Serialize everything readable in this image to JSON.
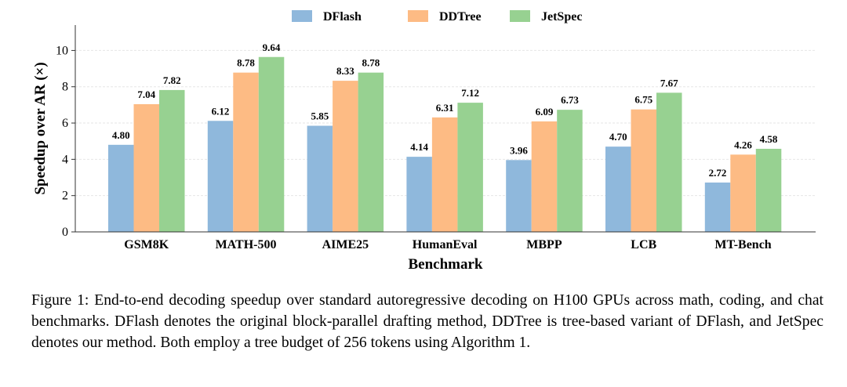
{
  "chart_data": {
    "type": "bar",
    "title": "",
    "xlabel": "Benchmark",
    "ylabel": "Speedup over AR (×)",
    "ylim": [
      0,
      11.4
    ],
    "yticks": [
      "0",
      "2",
      "4",
      "6",
      "8",
      "10"
    ],
    "grid": "horizontal",
    "legend_position": "top-center",
    "categories": [
      "GSM8K",
      "MATH-500",
      "AIME25",
      "HumanEval",
      "MBPP",
      "LCB",
      "MT-Bench"
    ],
    "series": [
      {
        "name": "DFlash",
        "color": "#8fb8dc",
        "values": [
          4.8,
          6.12,
          5.85,
          4.14,
          3.96,
          4.7,
          2.72
        ],
        "labels": [
          "4.80",
          "6.12",
          "5.85",
          "4.14",
          "3.96",
          "4.70",
          "2.72"
        ]
      },
      {
        "name": "DDTree",
        "color": "#fdbb84",
        "values": [
          7.04,
          8.78,
          8.33,
          6.31,
          6.09,
          6.75,
          4.26
        ],
        "labels": [
          "7.04",
          "8.78",
          "8.33",
          "6.31",
          "6.09",
          "6.75",
          "4.26"
        ]
      },
      {
        "name": "JetSpec",
        "color": "#97d191",
        "values": [
          7.82,
          9.64,
          8.78,
          7.12,
          6.73,
          7.67,
          4.58
        ],
        "labels": [
          "7.82",
          "9.64",
          "8.78",
          "7.12",
          "6.73",
          "7.67",
          "4.58"
        ]
      }
    ]
  },
  "caption": "Figure 1: End-to-end decoding speedup over standard autoregressive decoding on H100 GPUs across math, coding, and chat benchmarks. DFlash denotes the original block-parallel drafting method, DDTree is tree-based variant of DFlash, and JetSpec denotes our method. Both employ a tree budget of 256 tokens using Algorithm 1."
}
